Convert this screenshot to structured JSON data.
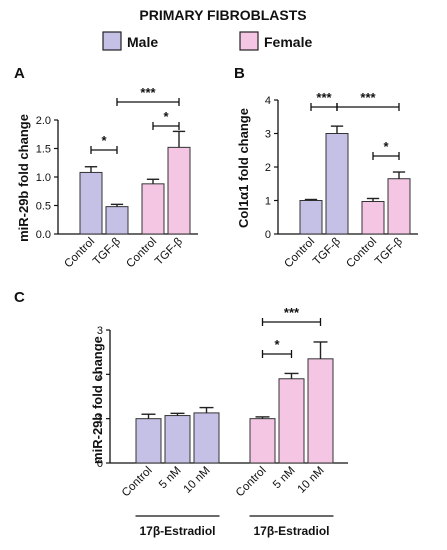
{
  "figure_title": "PRIMARY FIBROBLASTS",
  "legend": [
    {
      "label": "Male",
      "color": "#c4c0e6"
    },
    {
      "label": "Female",
      "color": "#f4c6e4"
    }
  ],
  "chart_data": [
    {
      "panel": "A",
      "type": "bar",
      "ylabel": "miR-29b fold change",
      "ylim": [
        0,
        2.0
      ],
      "yticks": [
        0,
        0.5,
        1.0,
        1.5,
        2.0
      ],
      "yticklabels": [
        "0.0",
        "0.5",
        "1.0",
        "1.5",
        "2.0"
      ],
      "categories": [
        "Control",
        "TGF-β",
        "Control",
        "TGF-β"
      ],
      "groups": [
        "Male",
        "Male",
        "Female",
        "Female"
      ],
      "values": [
        1.08,
        0.48,
        0.88,
        1.52
      ],
      "errors": [
        0.1,
        0.04,
        0.08,
        0.28
      ],
      "annotations": [
        {
          "text": "*",
          "from": 0,
          "to": 1
        },
        {
          "text": "*",
          "from": 2,
          "to": 3
        },
        {
          "text": "***",
          "from": 1,
          "to": 3
        }
      ]
    },
    {
      "panel": "B",
      "type": "bar",
      "ylabel": "Col1α1 fold change",
      "ylim": [
        0,
        4
      ],
      "yticks": [
        0,
        1,
        2,
        3,
        4
      ],
      "yticklabels": [
        "0",
        "1",
        "2",
        "3",
        "4"
      ],
      "categories": [
        "Control",
        "TGF-β",
        "Control",
        "TGF-β"
      ],
      "groups": [
        "Male",
        "Male",
        "Female",
        "Female"
      ],
      "values": [
        1.0,
        3.0,
        0.97,
        1.65
      ],
      "errors": [
        0.03,
        0.22,
        0.09,
        0.2
      ],
      "annotations": [
        {
          "text": "***",
          "from": 0,
          "to": 1
        },
        {
          "text": "***",
          "from": 1,
          "to": 3
        },
        {
          "text": "*",
          "from": 2,
          "to": 3
        }
      ]
    },
    {
      "panel": "C",
      "type": "bar",
      "ylabel": "miR-29b fold change",
      "ylim": [
        0,
        3
      ],
      "yticks": [
        0,
        1,
        2,
        3
      ],
      "yticklabels": [
        "0",
        "1",
        "2",
        "3"
      ],
      "categories": [
        "Control",
        "5 nM",
        "10 nM",
        "Control",
        "5 nM",
        "10 nM"
      ],
      "groups": [
        "Male",
        "Male",
        "Male",
        "Female",
        "Female",
        "Female"
      ],
      "values": [
        1.0,
        1.07,
        1.13,
        1.0,
        1.9,
        2.35
      ],
      "errors": [
        0.1,
        0.05,
        0.12,
        0.04,
        0.12,
        0.38
      ],
      "group_labels": [
        "17β-Estradiol",
        "17β-Estradiol"
      ],
      "annotations": [
        {
          "text": "*",
          "from": 3,
          "to": 4
        },
        {
          "text": "***",
          "from": 3,
          "to": 5
        }
      ]
    }
  ]
}
